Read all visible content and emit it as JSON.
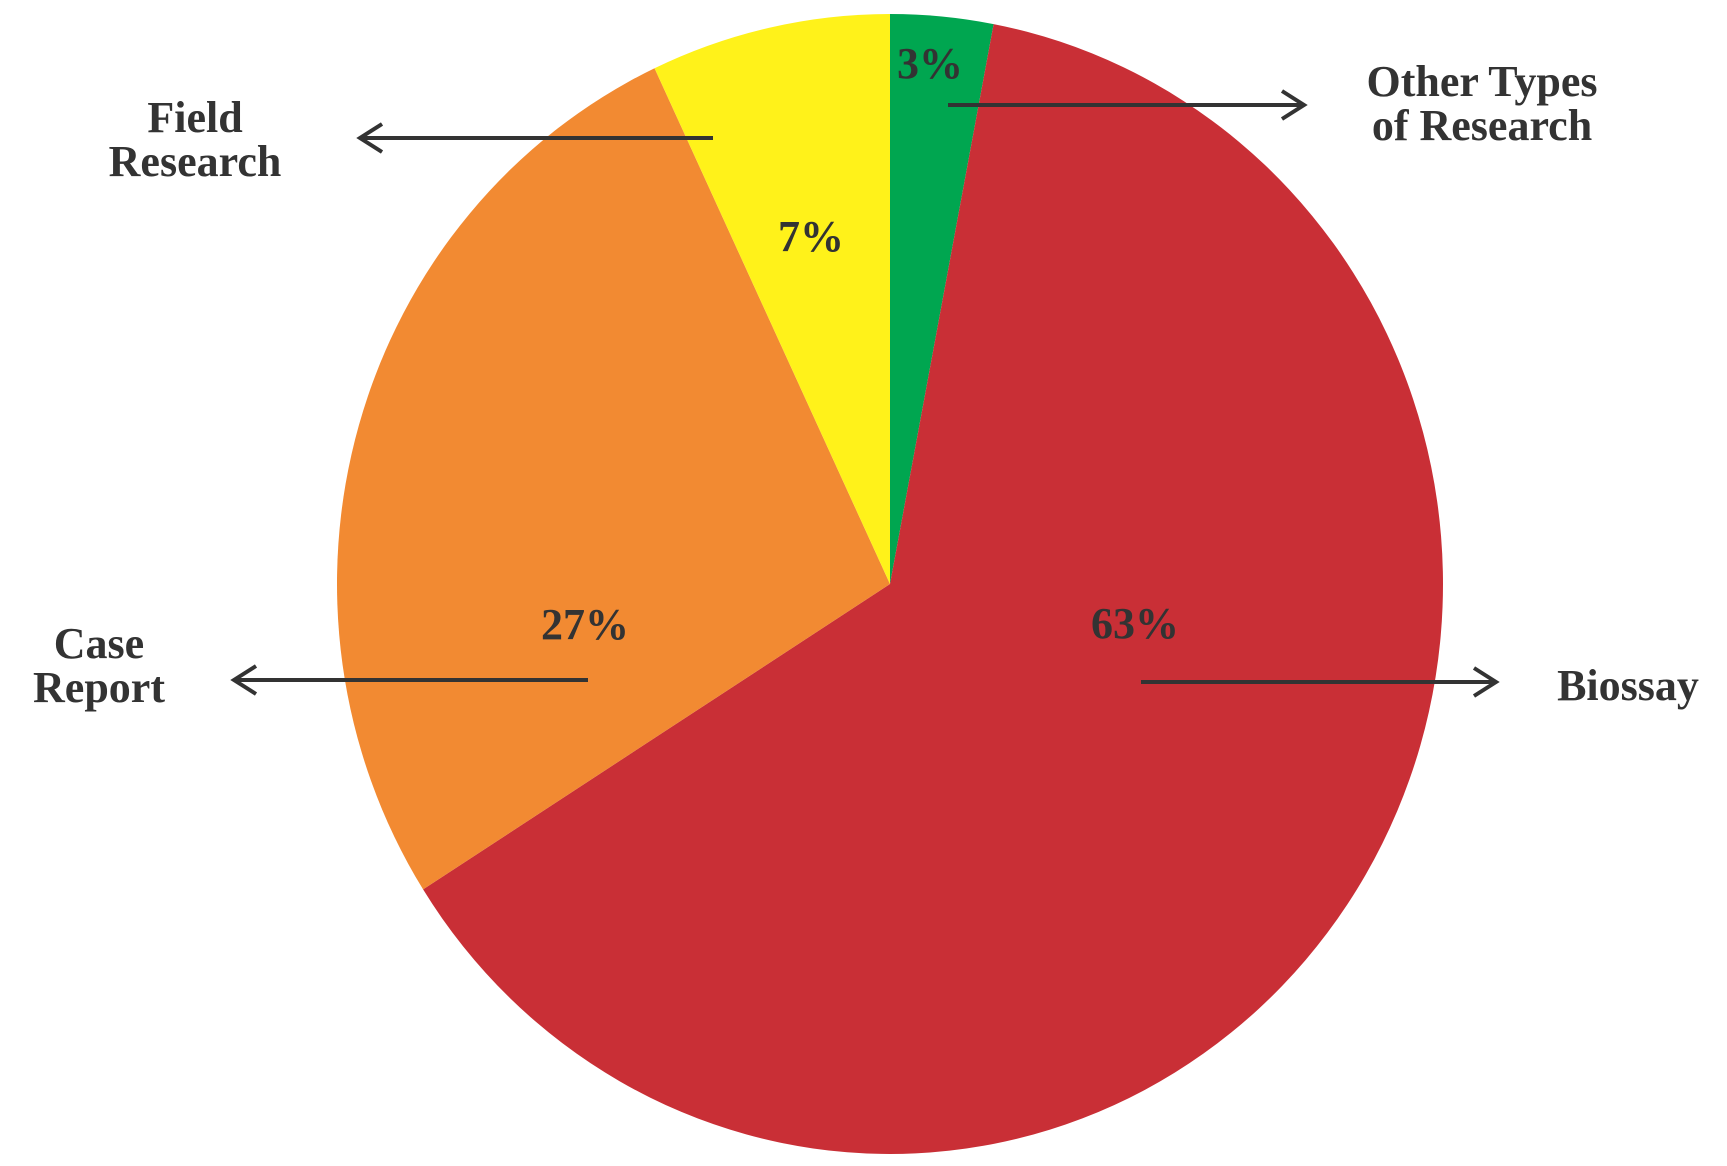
{
  "chart_data": {
    "type": "pie",
    "categories": [
      "Other Types\nof Research",
      "Biossay",
      "Case\nReport",
      "Field\nResearch"
    ],
    "values": [
      3,
      63,
      27,
      7
    ],
    "value_labels": [
      "3%",
      "63%",
      "27%",
      "7%"
    ],
    "colors": [
      "#00a650",
      "#c92f36",
      "#f28a32",
      "#fff21a"
    ]
  }
}
